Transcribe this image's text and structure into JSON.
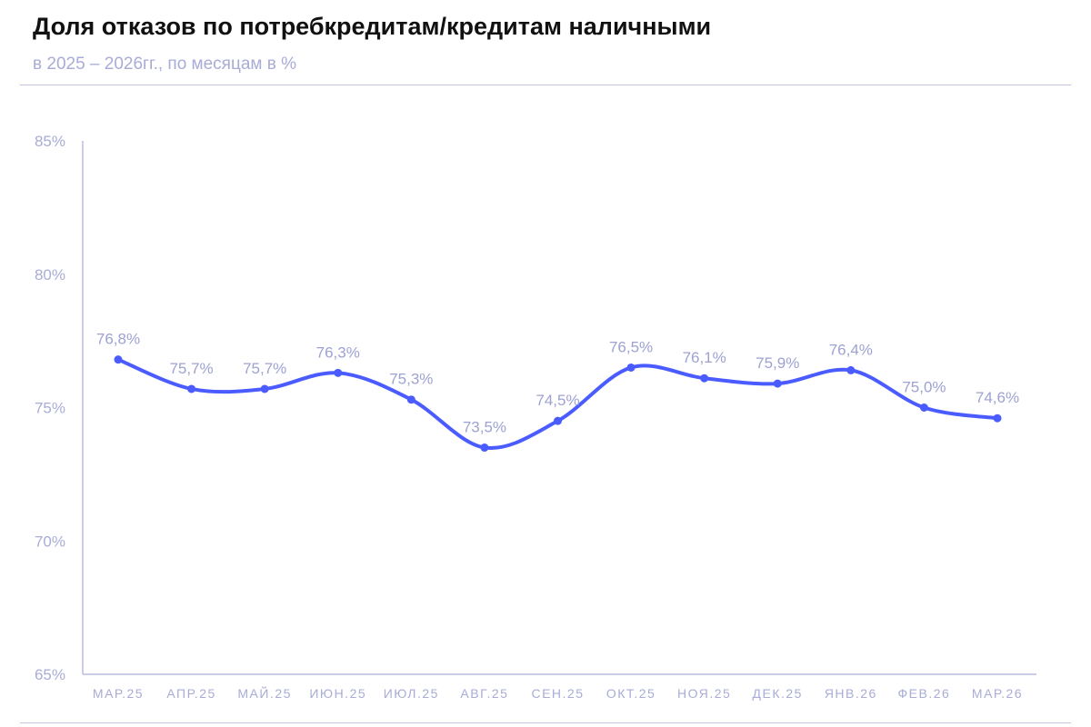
{
  "chart_data": {
    "type": "line",
    "title": "Доля отказов по потребкредитам/кредитам наличными",
    "subtitle": "в 2025 – 2026гг., по месяцам в %",
    "categories": [
      "МАР.25",
      "АПР.25",
      "МАЙ.25",
      "ИЮН.25",
      "ИЮЛ.25",
      "АВГ.25",
      "СЕН.25",
      "ОКТ.25",
      "НОЯ.25",
      "ДЕК.25",
      "ЯНВ.26",
      "ФЕВ.26",
      "МАР.26"
    ],
    "values": [
      76.8,
      75.7,
      75.7,
      76.3,
      75.3,
      73.5,
      74.5,
      76.5,
      76.1,
      75.9,
      76.4,
      75.0,
      74.6
    ],
    "labels": [
      "76,8%",
      "75,7%",
      "75,7%",
      "76,3%",
      "75,3%",
      "73,5%",
      "74,5%",
      "76,5%",
      "76,1%",
      "75,9%",
      "76,4%",
      "75,0%",
      "74,6%"
    ],
    "yticks": [
      65,
      70,
      75,
      80,
      85
    ],
    "ytick_labels": [
      "65%",
      "70%",
      "75%",
      "80%",
      "85%"
    ],
    "ylim": [
      65,
      85
    ],
    "grid": false,
    "smooth": true,
    "line_color": "#4a5cff",
    "text_color": "#a8acd6"
  }
}
